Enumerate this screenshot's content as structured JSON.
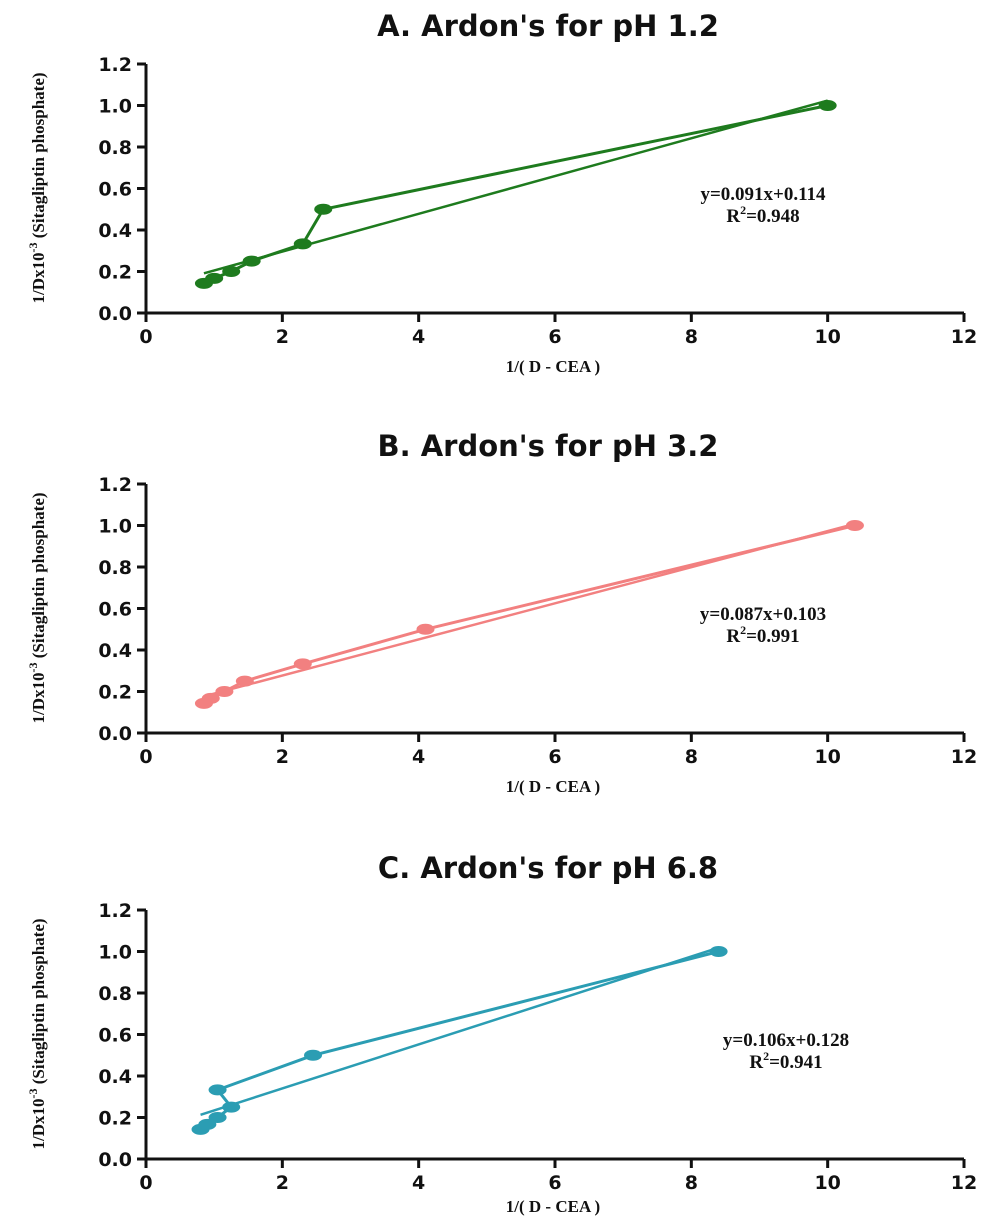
{
  "chart_data": [
    {
      "type": "line",
      "title": "A. Ardon's for pH 1.2",
      "xlabel": "1/( D - CEA  )",
      "ylabel": "1/Dx10-3 (Sitagliptin phosphate)",
      "xlim": [
        0,
        12
      ],
      "ylim": [
        0,
        1.2
      ],
      "xticks": [
        "0",
        "2",
        "4",
        "6",
        "8",
        "10",
        "12"
      ],
      "yticks": [
        "0.0",
        "0.2",
        "0.4",
        "0.6",
        "0.8",
        "1.0",
        "1.2"
      ],
      "color": "#1e7b1e",
      "series": [
        {
          "x": [
            0.85,
            1.0,
            1.25,
            1.55,
            2.3,
            2.6,
            10.0
          ],
          "y": [
            0.143,
            0.167,
            0.2,
            0.25,
            0.333,
            0.5,
            1.0
          ]
        }
      ],
      "fit": {
        "slope": 0.091,
        "intercept": 0.114,
        "x_range": [
          0.85,
          10.0
        ]
      },
      "equation": "y=0.091x+0.114",
      "r2_prefix": "R",
      "r2_value": "=0.948"
    },
    {
      "type": "line",
      "title": "B. Ardon's for pH 3.2",
      "xlabel": "1/( D - CEA  )",
      "ylabel": "1/Dx10-3 (Sitagliptin phosphate)",
      "xlim": [
        0,
        12
      ],
      "ylim": [
        0,
        1.2
      ],
      "xticks": [
        "0",
        "2",
        "4",
        "6",
        "8",
        "10",
        "12"
      ],
      "yticks": [
        "0.0",
        "0.2",
        "0.4",
        "0.6",
        "0.8",
        "1.0",
        "1.2"
      ],
      "color": "#f28080",
      "series": [
        {
          "x": [
            0.85,
            0.95,
            1.15,
            1.45,
            2.3,
            4.1,
            10.4
          ],
          "y": [
            0.143,
            0.167,
            0.2,
            0.25,
            0.333,
            0.5,
            1.0
          ]
        }
      ],
      "fit": {
        "slope": 0.087,
        "intercept": 0.103,
        "x_range": [
          0.85,
          10.4
        ]
      },
      "equation": "y=0.087x+0.103",
      "r2_prefix": "R",
      "r2_value": "=0.991"
    },
    {
      "type": "line",
      "title": "C. Ardon's for pH 6.8",
      "xlabel": "1/( D - CEA  )",
      "ylabel": "1/Dx10-3 (Sitagliptin phosphate)",
      "xlim": [
        0,
        12
      ],
      "ylim": [
        0,
        1.2
      ],
      "xticks": [
        "0",
        "2",
        "4",
        "6",
        "8",
        "10",
        "12"
      ],
      "yticks": [
        "0.0",
        "0.2",
        "0.4",
        "0.6",
        "0.8",
        "1.0",
        "1.2"
      ],
      "color": "#2b9db3",
      "series": [
        {
          "x": [
            0.8,
            0.9,
            1.05,
            1.25,
            1.05,
            2.45,
            8.4
          ],
          "y": [
            0.143,
            0.167,
            0.2,
            0.25,
            0.333,
            0.5,
            1.0
          ]
        }
      ],
      "fit": {
        "slope": 0.106,
        "intercept": 0.128,
        "x_range": [
          0.8,
          8.4
        ]
      },
      "equation": "y=0.106x+0.128",
      "r2_prefix": "R",
      "r2_value": "=0.941"
    }
  ]
}
